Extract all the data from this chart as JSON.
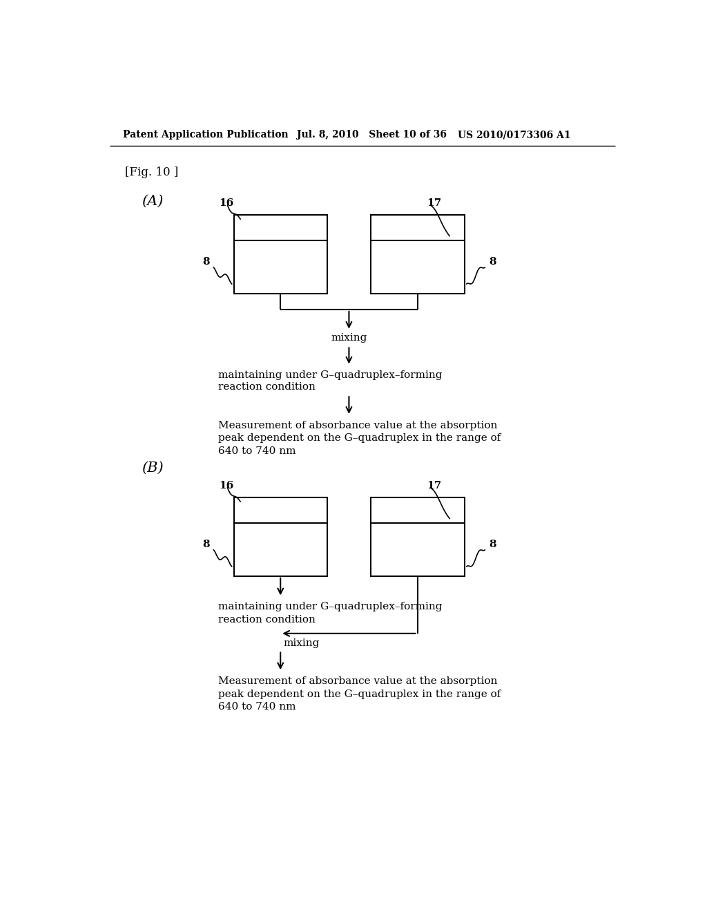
{
  "bg_color": "#ffffff",
  "header_left": "Patent Application Publication",
  "header_mid": "Jul. 8, 2010   Sheet 10 of 36",
  "header_right": "US 2010/0173306 A1",
  "fig_label": "[Fig. 10 ]",
  "section_A_label": "(A)",
  "section_B_label": "(B)",
  "text_color": "#000000"
}
